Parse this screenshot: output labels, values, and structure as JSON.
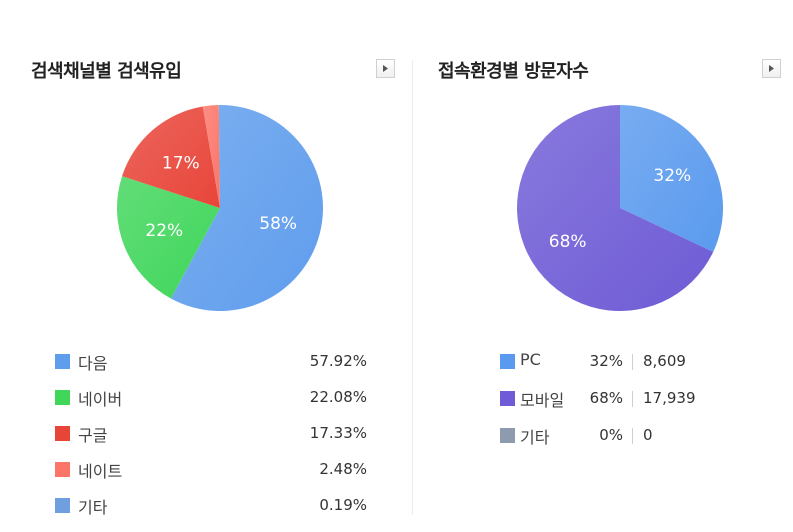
{
  "left_panel": {
    "title": "검색채널별 검색유입",
    "more_button": "▶"
  },
  "right_panel": {
    "title": "접속환경별 방문자수",
    "more_button": "▶"
  },
  "chart_data": [
    {
      "type": "pie",
      "title": "검색채널별 검색유입",
      "slices": [
        {
          "name": "다음",
          "value": 57.92,
          "pct_label": "57.92%",
          "slice_label": "58%",
          "color": "#5f9ded"
        },
        {
          "name": "네이버",
          "value": 22.08,
          "pct_label": "22.08%",
          "slice_label": "22%",
          "color": "#3fd65a"
        },
        {
          "name": "구글",
          "value": 17.33,
          "pct_label": "17.33%",
          "slice_label": "17%",
          "color": "#e84539"
        },
        {
          "name": "네이트",
          "value": 2.48,
          "pct_label": "2.48%",
          "slice_label": "",
          "color": "#fb7569"
        },
        {
          "name": "기타",
          "value": 0.19,
          "pct_label": "0.19%",
          "slice_label": "",
          "color": "#6f9fdf"
        }
      ]
    },
    {
      "type": "pie",
      "title": "접속환경별 방문자수",
      "slices": [
        {
          "name": "PC",
          "value": 32,
          "pct_label": "32%",
          "count": "8,609",
          "slice_label": "32%",
          "color": "#5a9aee"
        },
        {
          "name": "모바일",
          "value": 68,
          "pct_label": "68%",
          "count": "17,939",
          "slice_label": "68%",
          "color": "#6e5bd5"
        },
        {
          "name": "기타",
          "value": 0,
          "pct_label": "0%",
          "count": "0",
          "slice_label": "",
          "color": "#8e9bae"
        }
      ]
    }
  ]
}
